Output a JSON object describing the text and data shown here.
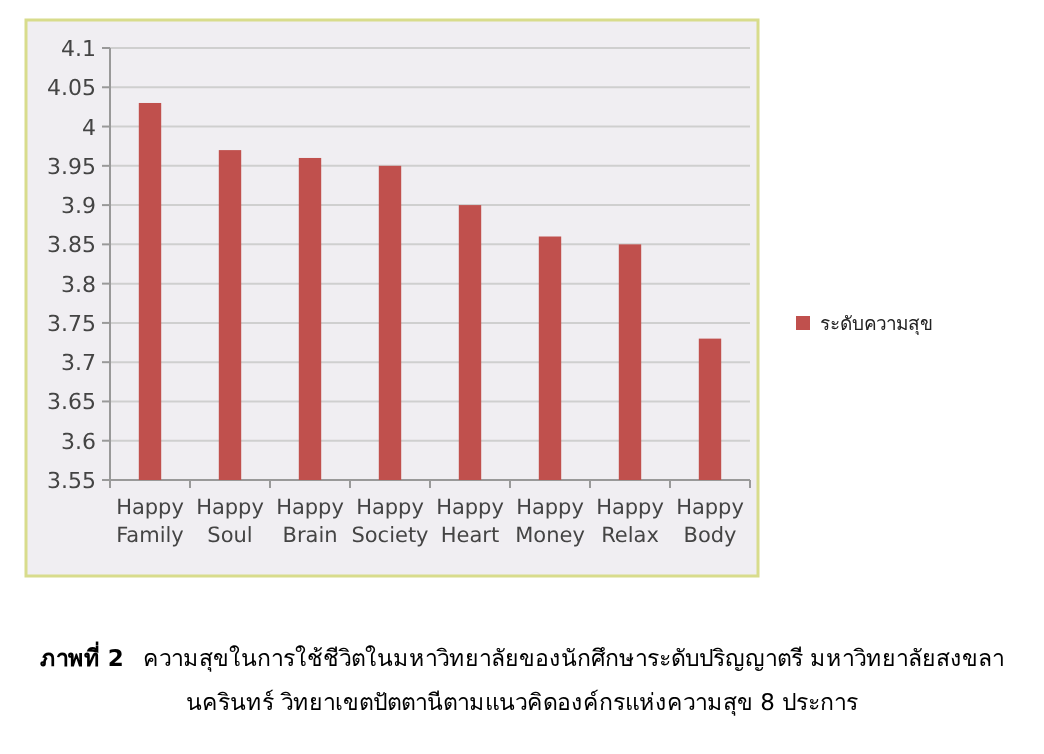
{
  "chart_data": {
    "type": "bar",
    "categories": [
      "Happy Family",
      "Happy Soul",
      "Happy Brain",
      "Happy Society",
      "Happy Heart",
      "Happy Money",
      "Happy Relax",
      "Happy Body"
    ],
    "series": [
      {
        "name": "ระดับความสุข",
        "color": "#c0504d",
        "values": [
          4.03,
          3.97,
          3.96,
          3.95,
          3.9,
          3.86,
          3.85,
          3.73
        ]
      }
    ],
    "ylim": [
      3.55,
      4.1
    ],
    "yticks": [
      3.55,
      3.6,
      3.65,
      3.7,
      3.75,
      3.8,
      3.85,
      3.9,
      3.95,
      4,
      4.05,
      4.1
    ],
    "grid": "y",
    "legend": "right",
    "annotations": [
      "ภาพที่ 2",
      "ความสุขในการใช้ชีวิตในมหาวิทยาลัยของนักศึกษาระดับปริญญาตรี มหาวิทยาลัยสงขลานครินทร์ วิทยาเขตปัตตานีตามแนวคิดองค์กรแห่งความสุข 8 ประการ"
    ]
  }
}
